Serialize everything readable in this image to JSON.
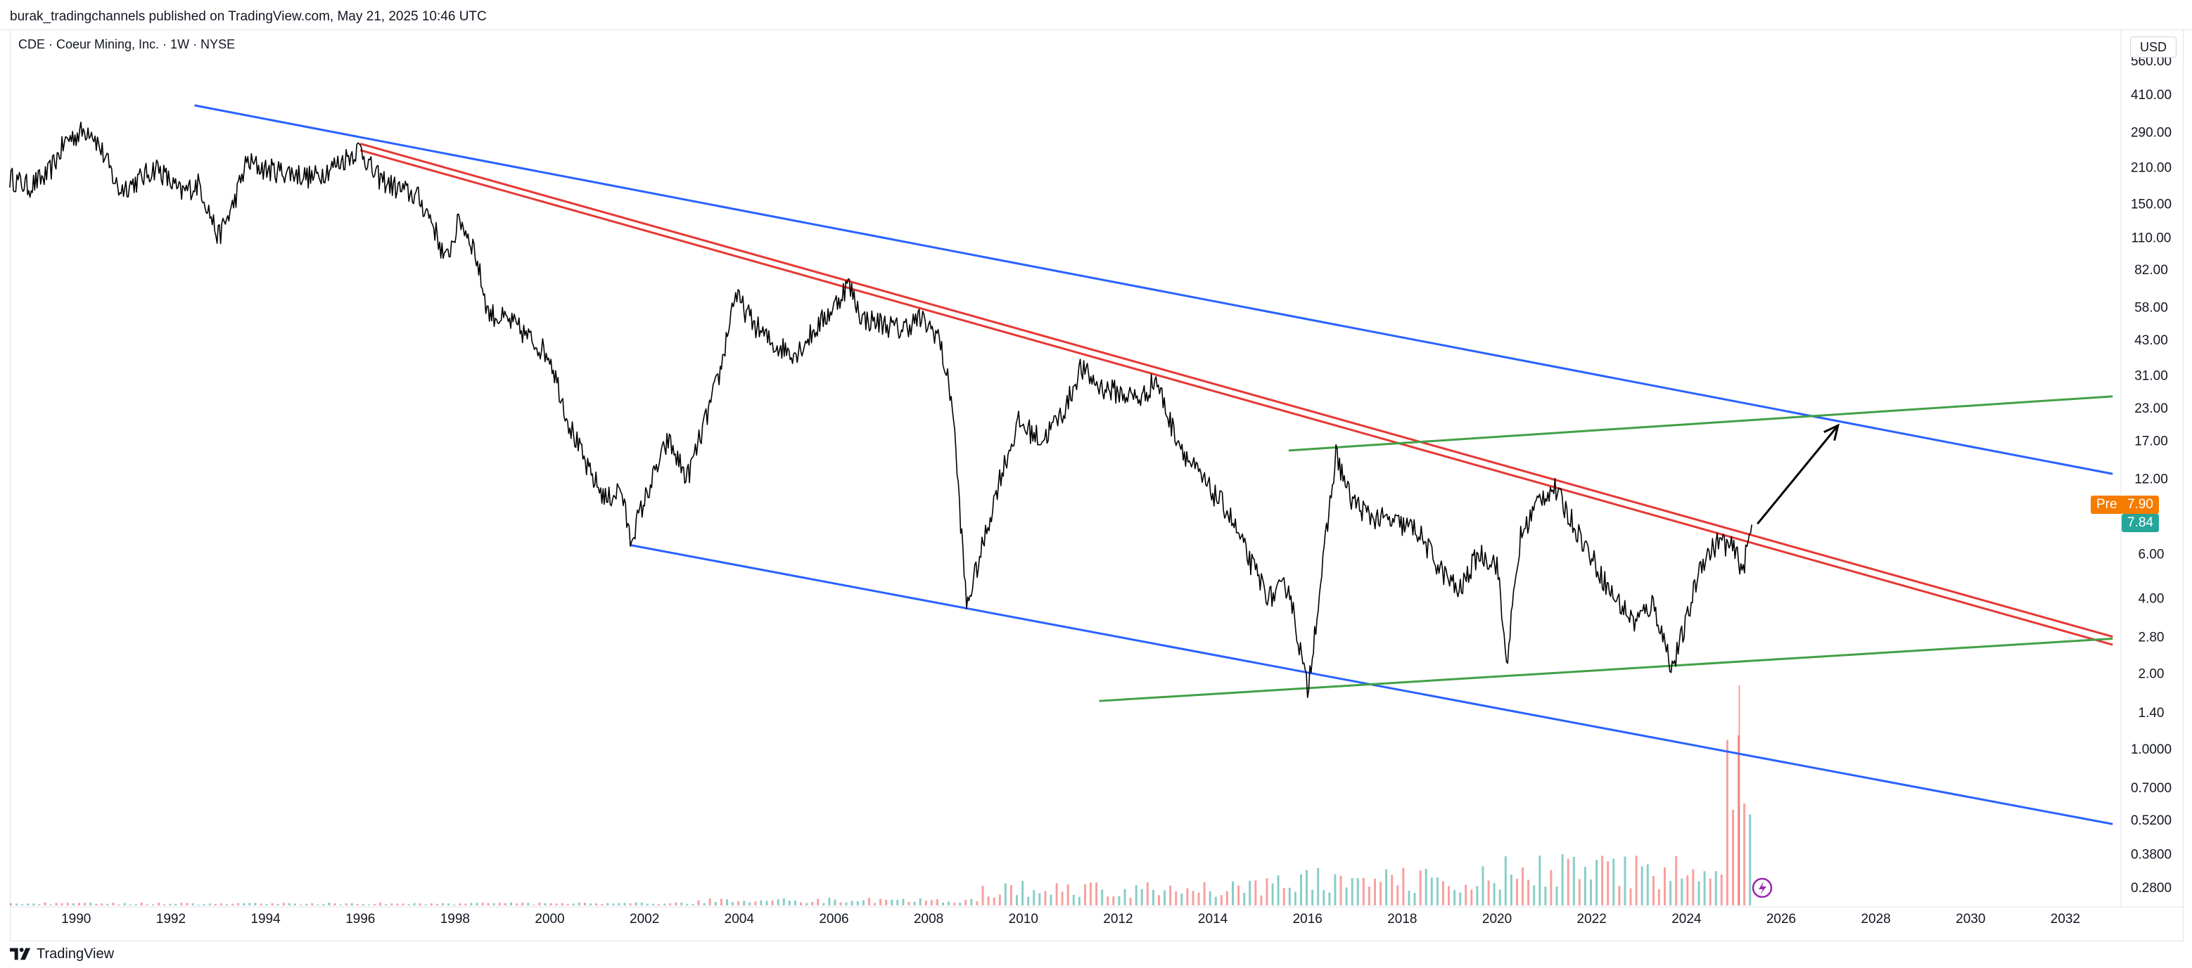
{
  "header": {
    "publisher_text": "burak_tradingchannels published on TradingView.com, May 21, 2025 10:46 UTC"
  },
  "symbol_line": "CDE · Coeur Mining, Inc. · 1W · NYSE",
  "currency": "USD",
  "footer": {
    "brand": "TradingView"
  },
  "price_tags": {
    "pre_label": "Pre",
    "pre_value": "7.90",
    "last_value": "7.84",
    "pre_color": "#f57c00",
    "last_color": "#26a69a"
  },
  "chart_data": {
    "type": "line",
    "title": "CDE · Coeur Mining, Inc. · 1W · NYSE",
    "y_scale": "log",
    "yaxis_ticks": [
      "560.00",
      "410.00",
      "290.00",
      "210.00",
      "150.00",
      "110.00",
      "82.00",
      "58.00",
      "43.00",
      "31.00",
      "23.00",
      "17.00",
      "12.00",
      "6.00",
      "4.00",
      "2.80",
      "2.00",
      "1.40",
      "1.0000",
      "0.7000",
      "0.5200",
      "0.3800",
      "0.2800"
    ],
    "xaxis_ticks": [
      "1990",
      "1992",
      "1994",
      "1996",
      "1998",
      "2000",
      "2002",
      "2004",
      "2006",
      "2008",
      "2010",
      "2012",
      "2014",
      "2016",
      "2018",
      "2020",
      "2022",
      "2024",
      "2026",
      "2028",
      "2030",
      "2032"
    ],
    "ylim": [
      0.24,
      620
    ],
    "xlim": [
      1988.6,
      2033.1
    ],
    "series": [
      {
        "values": [
          [
            1988.6,
            190
          ],
          [
            1989.0,
            175
          ],
          [
            1989.4,
            195
          ],
          [
            1989.8,
            270
          ],
          [
            1990.3,
            300
          ],
          [
            1990.6,
            230
          ],
          [
            1990.9,
            170
          ],
          [
            1991.3,
            185
          ],
          [
            1991.7,
            210
          ],
          [
            1992.2,
            165
          ],
          [
            1992.6,
            180
          ],
          [
            1993.0,
            110
          ],
          [
            1993.3,
            145
          ],
          [
            1993.6,
            220
          ],
          [
            1994.0,
            205
          ],
          [
            1994.5,
            200
          ],
          [
            1995.0,
            190
          ],
          [
            1995.5,
            215
          ],
          [
            1996.0,
            250
          ],
          [
            1996.3,
            195
          ],
          [
            1996.7,
            175
          ],
          [
            1997.2,
            160
          ],
          [
            1997.5,
            130
          ],
          [
            1997.8,
            88
          ],
          [
            1998.1,
            130
          ],
          [
            1998.4,
            100
          ],
          [
            1998.7,
            55
          ],
          [
            1999.2,
            50
          ],
          [
            1999.6,
            43
          ],
          [
            2000.0,
            37
          ],
          [
            2000.4,
            20
          ],
          [
            2000.8,
            13
          ],
          [
            2001.2,
            9.8
          ],
          [
            2001.5,
            11
          ],
          [
            2001.7,
            6.8
          ],
          [
            2002.1,
            11
          ],
          [
            2002.5,
            17
          ],
          [
            2002.9,
            12
          ],
          [
            2003.2,
            18
          ],
          [
            2003.6,
            32
          ],
          [
            2003.9,
            65
          ],
          [
            2004.3,
            50
          ],
          [
            2004.7,
            41
          ],
          [
            2005.2,
            38
          ],
          [
            2005.6,
            47
          ],
          [
            2006.0,
            58
          ],
          [
            2006.3,
            72
          ],
          [
            2006.6,
            52
          ],
          [
            2007.0,
            50
          ],
          [
            2007.4,
            47
          ],
          [
            2007.8,
            52
          ],
          [
            2008.2,
            45
          ],
          [
            2008.5,
            24
          ],
          [
            2008.8,
            3.7
          ],
          [
            2009.1,
            6
          ],
          [
            2009.5,
            12
          ],
          [
            2009.9,
            20
          ],
          [
            2010.4,
            17
          ],
          [
            2010.9,
            23
          ],
          [
            2011.2,
            33
          ],
          [
            2011.6,
            28
          ],
          [
            2012.1,
            26
          ],
          [
            2012.5,
            25
          ],
          [
            2012.8,
            30
          ],
          [
            2013.1,
            20
          ],
          [
            2013.5,
            14
          ],
          [
            2013.9,
            11
          ],
          [
            2014.3,
            9
          ],
          [
            2014.8,
            5.5
          ],
          [
            2015.2,
            4
          ],
          [
            2015.6,
            4.5
          ],
          [
            2016.0,
            1.7
          ],
          [
            2016.3,
            5
          ],
          [
            2016.6,
            15
          ],
          [
            2016.9,
            10
          ],
          [
            2017.3,
            8.5
          ],
          [
            2017.8,
            8
          ],
          [
            2018.3,
            7.5
          ],
          [
            2018.8,
            5.2
          ],
          [
            2019.2,
            4.2
          ],
          [
            2019.6,
            6
          ],
          [
            2020.0,
            5.5
          ],
          [
            2020.2,
            2.2
          ],
          [
            2020.5,
            7
          ],
          [
            2020.9,
            10
          ],
          [
            2021.2,
            11
          ],
          [
            2021.6,
            8
          ],
          [
            2022.0,
            5.8
          ],
          [
            2022.4,
            4.2
          ],
          [
            2022.9,
            3.2
          ],
          [
            2023.3,
            3.8
          ],
          [
            2023.7,
            2.1
          ],
          [
            2024.0,
            3.2
          ],
          [
            2024.3,
            5.5
          ],
          [
            2024.7,
            6.8
          ],
          [
            2025.0,
            6.2
          ],
          [
            2025.2,
            5.2
          ],
          [
            2025.38,
            7.84
          ]
        ]
      }
    ],
    "trendlines": [
      {
        "color": "#2962ff",
        "from": [
          1992.5,
          370
        ],
        "to": [
          2033.0,
          12.5
        ]
      },
      {
        "color": "#2962ff",
        "from": [
          2001.7,
          6.5
        ],
        "to": [
          2033.0,
          0.5
        ]
      },
      {
        "color": "#e53935",
        "from": [
          1996.0,
          260
        ],
        "to": [
          2033.0,
          2.8
        ]
      },
      {
        "color": "#e53935",
        "from": [
          1996.0,
          245
        ],
        "to": [
          2033.0,
          2.6
        ]
      },
      {
        "color": "#43a047",
        "from": [
          2015.6,
          15.5
        ],
        "to": [
          2033.0,
          25.5
        ]
      },
      {
        "color": "#43a047",
        "from": [
          2011.6,
          1.55
        ],
        "to": [
          2033.0,
          2.75
        ]
      }
    ],
    "arrow": {
      "color": "#000000",
      "from": [
        2025.5,
        7.9
      ],
      "to": [
        2027.2,
        19.5
      ]
    }
  }
}
